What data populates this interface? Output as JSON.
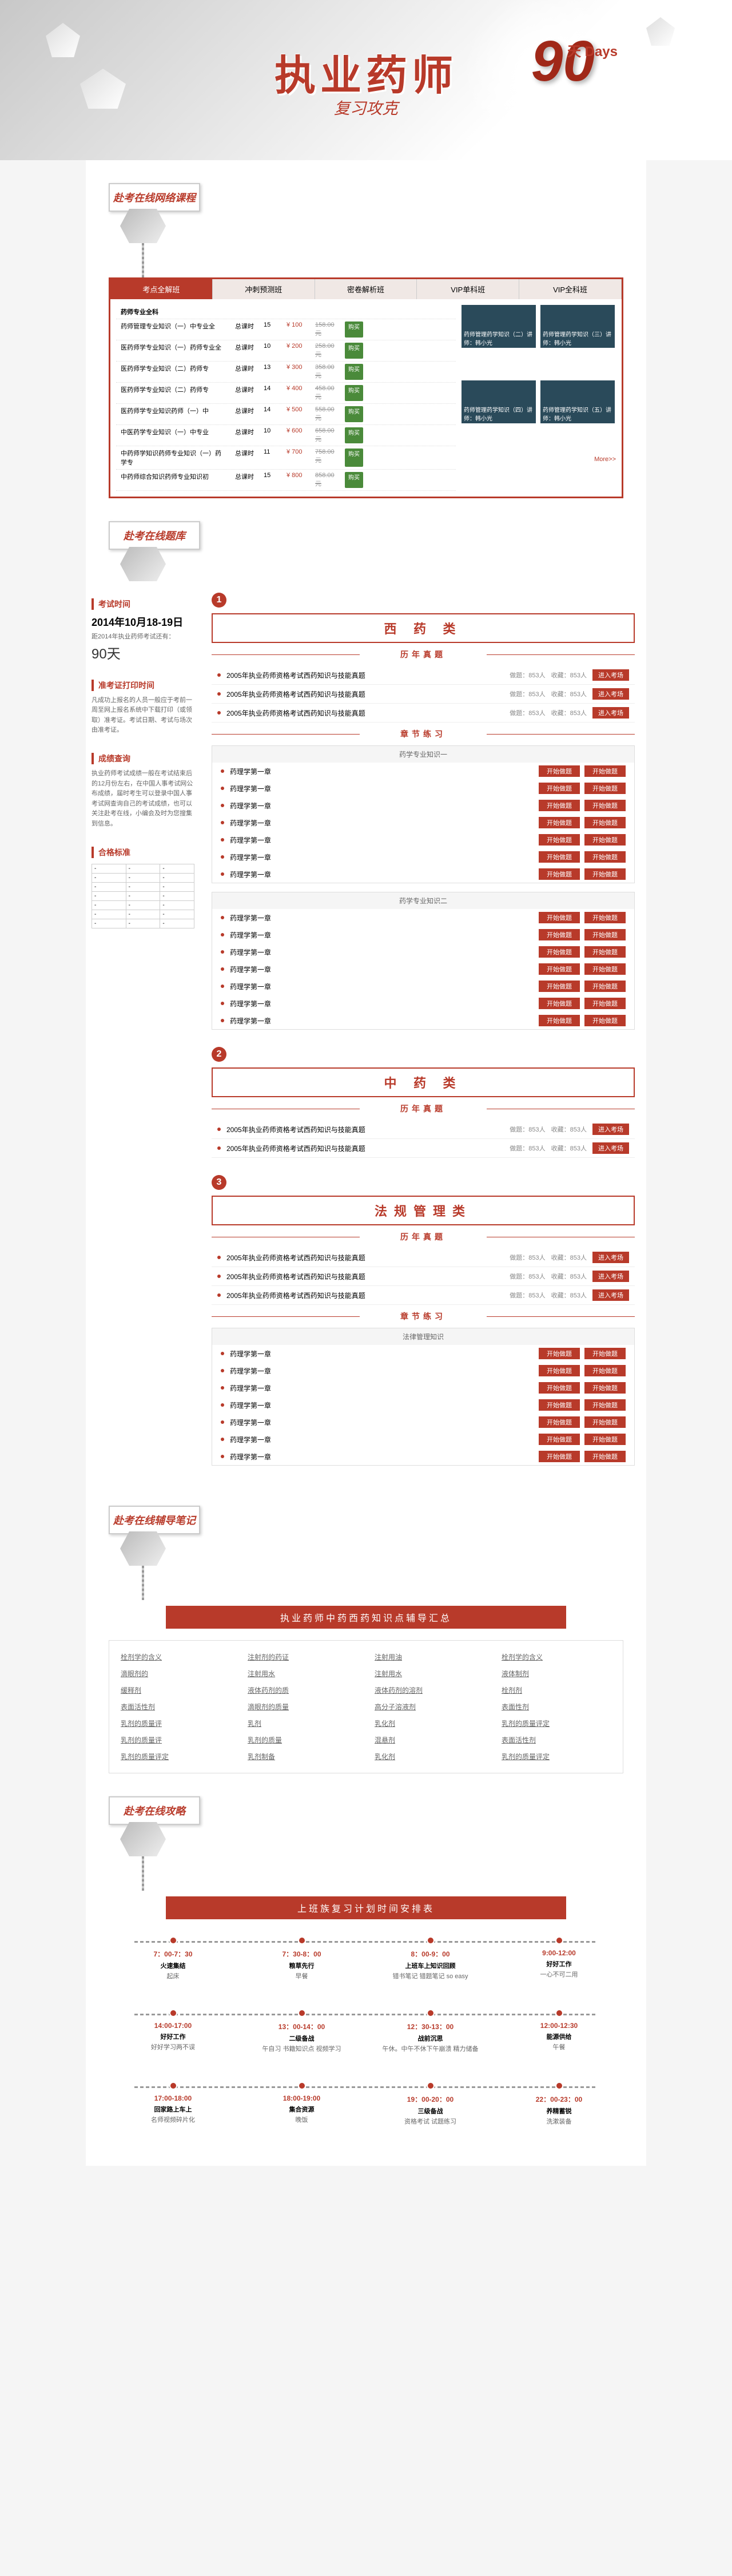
{
  "hero": {
    "title": "执业药师",
    "subtitle": "复习攻克",
    "num": "90",
    "days": "天 Days"
  },
  "sections": {
    "courses": "赴考在线网络课程",
    "bank": "赴考在线题库",
    "notes": "赴考在线辅导笔记",
    "strategy": "赴考在线攻略"
  },
  "courseTabs": [
    "考点全解班",
    "冲刺预测班",
    "密卷解析班",
    "VIP单科班",
    "VIP全科班"
  ],
  "courseHeader": "药师专业全科",
  "moreLabel": "More>>",
  "courses": [
    {
      "name": "药师管理专业知识（一）中专业全",
      "h": "总课时",
      "n": "15",
      "p": "¥ 100",
      "op": "158.00元"
    },
    {
      "name": "医药师学专业知识（一）药师专业全",
      "h": "总课时",
      "n": "10",
      "p": "¥ 200",
      "op": "258.00元"
    },
    {
      "name": "医药师学专业知识（二）药师专",
      "h": "总课时",
      "n": "13",
      "p": "¥ 300",
      "op": "358.00元"
    },
    {
      "name": "医药师学专业知识（二）药师专",
      "h": "总课时",
      "n": "14",
      "p": "¥ 400",
      "op": "458.00元"
    },
    {
      "name": "医药师学专业知识药师（一）中",
      "h": "总课时",
      "n": "14",
      "p": "¥ 500",
      "op": "558.00元"
    },
    {
      "name": "中医药学专业知识（一）中专业",
      "h": "总课时",
      "n": "10",
      "p": "¥ 600",
      "op": "658.00元"
    },
    {
      "name": "中药师学知识药师专业知识（一）药学专",
      "h": "总课时",
      "n": "11",
      "p": "¥ 700",
      "op": "758.00元"
    },
    {
      "name": "中药师综合知识药师专业知识初",
      "h": "总课时",
      "n": "15",
      "p": "¥ 800",
      "op": "858.00元"
    }
  ],
  "buyBtn": "购买",
  "videos": [
    {
      "t": "药师管理药学知识（二）讲师：韩小光"
    },
    {
      "t": "药师管理药学知识（三）讲师：韩小光"
    },
    {
      "t": "药师管理药学知识（四）讲师：韩小光"
    },
    {
      "t": "药师管理药学知识（五）讲师：韩小光"
    }
  ],
  "sidebar": {
    "examTime": {
      "title": "考试时间",
      "date": "2014年10月18-19日",
      "note": "距2014年执业药师考试还有：",
      "days": "90天"
    },
    "printTime": {
      "title": "准考证打印时间",
      "text": "凡成功上报名的人员一般应于考前一周至网上报名系统中下载打印（或领取）准考证。考试日期、考试与场次由准考证。"
    },
    "score": {
      "title": "成绩查询",
      "text": "执业药师考试成绩一般在考试结束后的12月份左右，在中国人事考试网公布成绩，届时考生可以登录中国人事考试网查询自己的考试成绩，也可以关注赴考在线，小编会及时为您搜集到信息。"
    },
    "pass": {
      "title": "合格标准",
      "rows": [
        [
          "-",
          "-",
          "-"
        ],
        [
          "-",
          "-",
          "-"
        ],
        [
          "-",
          "-",
          "-"
        ],
        [
          "-",
          "-",
          "-"
        ],
        [
          "-",
          "-",
          "-"
        ],
        [
          "-",
          "-",
          "-"
        ],
        [
          "-",
          "-",
          "-"
        ]
      ]
    }
  },
  "categories": [
    {
      "num": "1",
      "title": "西 药 类",
      "exams": [
        {
          "name": "2005年执业药师资格考试西药知识与技能真题",
          "q": "做题：853人",
          "s": "收藏：853人"
        },
        {
          "name": "2005年执业药师资格考试西药知识与技能真题",
          "q": "做题：853人",
          "s": "收藏：853人"
        },
        {
          "name": "2005年执业药师资格考试西药知识与技能真题",
          "q": "做题：853人",
          "s": "收藏：853人"
        }
      ],
      "practiceGroups": [
        {
          "title": "药学专业知识一",
          "items": [
            "药理学第一章",
            "药理学第一章",
            "药理学第一章",
            "药理学第一章",
            "药理学第一章",
            "药理学第一章",
            "药理学第一章"
          ]
        },
        {
          "title": "药学专业知识二",
          "items": [
            "药理学第一章",
            "药理学第一章",
            "药理学第一章",
            "药理学第一章",
            "药理学第一章",
            "药理学第一章",
            "药理学第一章"
          ]
        }
      ]
    },
    {
      "num": "2",
      "title": "中 药 类",
      "exams": [
        {
          "name": "2005年执业药师资格考试西药知识与技能真题",
          "q": "做题：853人",
          "s": "收藏：853人"
        },
        {
          "name": "2005年执业药师资格考试西药知识与技能真题",
          "q": "做题：853人",
          "s": "收藏：853人"
        }
      ]
    },
    {
      "num": "3",
      "title": "法规管理类",
      "exams": [
        {
          "name": "2005年执业药师资格考试西药知识与技能真题",
          "q": "做题：853人",
          "s": "收藏：853人"
        },
        {
          "name": "2005年执业药师资格考试西药知识与技能真题",
          "q": "做题：853人",
          "s": "收藏：853人"
        },
        {
          "name": "2005年执业药师资格考试西药知识与技能真题",
          "q": "做题：853人",
          "s": "收藏：853人"
        }
      ],
      "practiceGroups": [
        {
          "title": "法律管理知识",
          "items": [
            "药理学第一章",
            "药理学第一章",
            "药理学第一章",
            "药理学第一章",
            "药理学第一章",
            "药理学第一章",
            "药理学第一章"
          ]
        }
      ]
    }
  ],
  "subHeaders": {
    "past": "历年真题",
    "chapter": "章节练习"
  },
  "enterBtn": "进入考场",
  "startBtn": "开始做题",
  "viewBtn": "开始做题",
  "notesTitle": "执业药师中药西药知识点辅导汇总",
  "notes": [
    "栓剂学的含义",
    "注射剂的药证",
    "注射用油",
    "栓剂学的含义",
    "滴眼剂的",
    "注射用水",
    "注射用水",
    "液体制剂",
    "缓释剂",
    "液体药剂的质",
    "液体药剂的溶剂",
    "栓剂剂",
    "表面活性剂",
    "滴眼剂的质量",
    "高分子溶液剂",
    "表面性剂",
    "乳剂的质量评",
    "乳剂",
    "乳化剂",
    "乳剂的质量评定",
    "乳剂的质量评",
    "乳剂的质量",
    "混悬剂",
    "表面活性剂",
    "乳剂的质量评定",
    "乳剂制备",
    "乳化剂",
    "乳剂的质量评定"
  ],
  "scheduleTitle": "上班族复习计划时间安排表",
  "timeline": [
    [
      {
        "time": "7：00-7：30",
        "h": "火速集结",
        "d": "起床"
      },
      {
        "time": "7：30-8：00",
        "h": "粮草先行",
        "d": "早餐"
      },
      {
        "time": "8：00-9：00",
        "h": "上班车上知识回顾",
        "d": "错书笔记 错题笔记 so easy"
      },
      {
        "time": "9:00-12:00",
        "h": "好好工作",
        "d": "一心不可二用"
      }
    ],
    [
      {
        "time": "14:00-17:00",
        "h": "好好工作",
        "d": "好好学习两不误"
      },
      {
        "time": "13：00-14：00",
        "h": "二级备战",
        "d": "午自习 书籍知识点 视频学习"
      },
      {
        "time": "12：30-13：00",
        "h": "战前沉思",
        "d": "午休。中午不休下午崩溃 精力储备"
      },
      {
        "time": "12:00-12:30",
        "h": "能源供给",
        "d": "午餐"
      }
    ],
    [
      {
        "time": "17:00-18:00",
        "h": "回家路上车上",
        "d": "名师视频碎片化"
      },
      {
        "time": "18:00-19:00",
        "h": "集合资源",
        "d": "晚饭"
      },
      {
        "time": "19：00-20：00",
        "h": "三级备战",
        "d": "资格考试 试题练习"
      },
      {
        "time": "22：00-23：00",
        "h": "养精蓄锐",
        "d": "洗漱装备"
      }
    ]
  ]
}
